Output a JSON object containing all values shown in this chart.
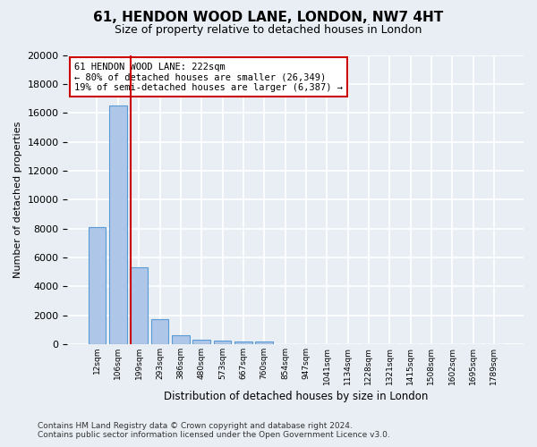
{
  "title": "61, HENDON WOOD LANE, LONDON, NW7 4HT",
  "subtitle": "Size of property relative to detached houses in London",
  "xlabel": "Distribution of detached houses by size in London",
  "ylabel": "Number of detached properties",
  "bar_values": [
    8100,
    16500,
    5300,
    1750,
    650,
    330,
    270,
    180,
    170,
    0,
    0,
    0,
    0,
    0,
    0,
    0,
    0,
    0,
    0,
    0
  ],
  "bar_labels": [
    "12sqm",
    "106sqm",
    "199sqm",
    "293sqm",
    "386sqm",
    "480sqm",
    "573sqm",
    "667sqm",
    "760sqm",
    "854sqm",
    "947sqm",
    "1041sqm",
    "1134sqm",
    "1228sqm",
    "1321sqm",
    "1415sqm",
    "1508sqm",
    "1602sqm",
    "1695sqm",
    "1789sqm"
  ],
  "bar_color": "#aec6e8",
  "bar_edge_color": "#5b9bd5",
  "vline_x": 1.6,
  "vline_color": "#cc0000",
  "annotation_text": "61 HENDON WOOD LANE: 222sqm\n← 80% of detached houses are smaller (26,349)\n19% of semi-detached houses are larger (6,387) →",
  "annotation_box_color": "#cc0000",
  "ylim": [
    0,
    20000
  ],
  "yticks": [
    0,
    2000,
    4000,
    6000,
    8000,
    10000,
    12000,
    14000,
    16000,
    18000,
    20000
  ],
  "footer_text": "Contains HM Land Registry data © Crown copyright and database right 2024.\nContains public sector information licensed under the Open Government Licence v3.0.",
  "bg_color": "#e8eef4",
  "plot_bg_color": "#e8eef4",
  "grid_color": "#ffffff"
}
